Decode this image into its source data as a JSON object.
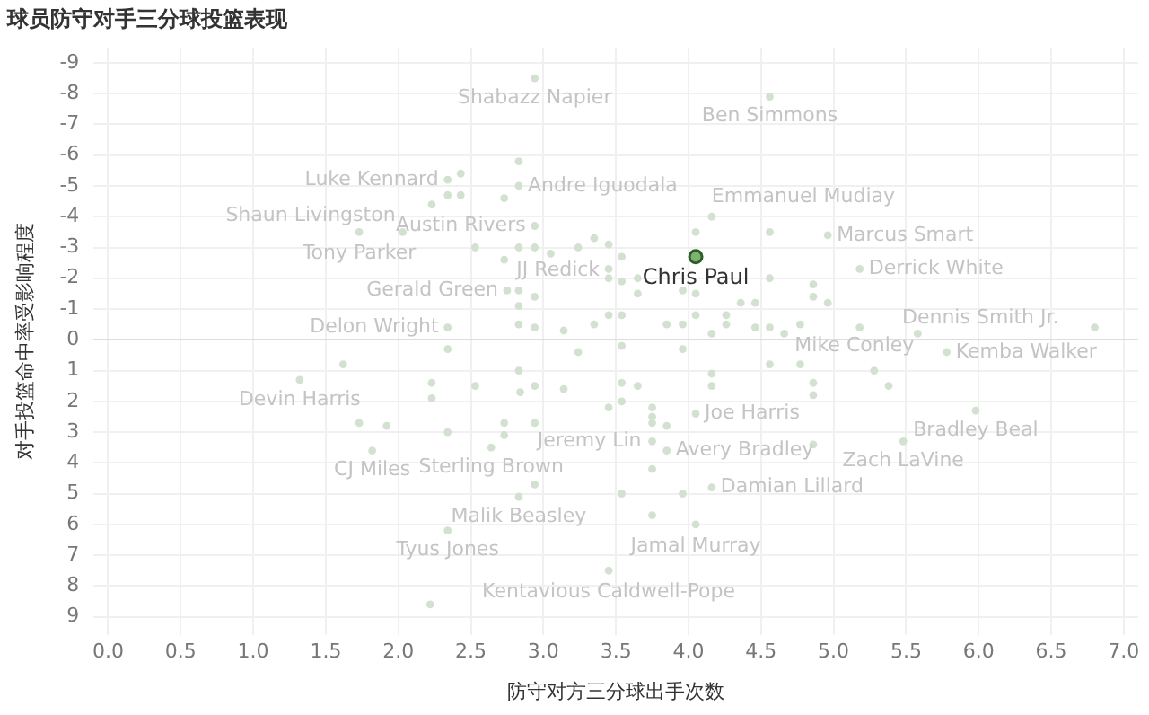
{
  "chart_data": {
    "type": "scatter",
    "title": "球员防守对手三分球投篮表现",
    "xlabel": "防守对方三分球出手次数",
    "ylabel": "对手投篮命中率受影响程度",
    "xlim": [
      -0.1,
      7.1
    ],
    "xticks": [
      {
        "value": 0,
        "label": "0.0"
      },
      {
        "value": 0.5,
        "label": "0.5"
      },
      {
        "value": 1,
        "label": "1.0"
      },
      {
        "value": 1.5,
        "label": "1.5"
      },
      {
        "value": 2,
        "label": "2.0"
      },
      {
        "value": 2.5,
        "label": "2.5"
      },
      {
        "value": 3,
        "label": "3.0"
      },
      {
        "value": 3.5,
        "label": "3.5"
      },
      {
        "value": 4,
        "label": "4.0"
      },
      {
        "value": 4.5,
        "label": "4.5"
      },
      {
        "value": 5,
        "label": "5.0"
      },
      {
        "value": 5.5,
        "label": "5.5"
      },
      {
        "value": 6,
        "label": "6.0"
      },
      {
        "value": 6.5,
        "label": "6.5"
      },
      {
        "value": 7,
        "label": "7.0"
      }
    ],
    "ylim": [
      9.6,
      -9.5
    ],
    "yticks": [
      -9,
      -8,
      -7,
      -6,
      -5,
      -4,
      -3,
      -2,
      -1,
      0,
      1,
      2,
      3,
      4,
      5,
      6,
      7,
      8,
      9
    ],
    "grid": true,
    "marker": "circle",
    "series": [
      {
        "color": "#d3e2d0",
        "x": [
          2.94,
          4.56,
          2.34,
          2.83,
          2.03,
          2.94,
          1.73,
          2.75,
          3.45,
          2.34,
          4.16,
          4.96,
          5.18,
          6.8,
          5.58,
          5.78,
          1.32,
          4.05,
          3.75,
          3.85,
          5.98,
          5.48,
          1.82,
          2.64,
          4.16,
          2.83,
          4.05,
          2.34,
          3.45,
          2.43,
          2.34,
          2.43,
          2.23,
          2.83,
          2.73,
          2.53,
          2.83,
          2.94,
          3.05,
          3.24,
          2.73,
          2.83,
          2.83,
          2.94,
          2.83,
          2.94,
          3.14,
          2.34,
          4.05,
          4.56,
          3.35,
          3.45,
          3.54,
          3.45,
          3.54,
          3.65,
          3.65,
          3.96,
          4.05,
          4.56,
          4.86,
          4.86,
          4.96,
          4.36,
          4.46,
          3.45,
          3.54,
          3.35,
          3.85,
          3.96,
          4.05,
          4.26,
          4.16,
          4.26,
          4.46,
          4.56,
          4.66,
          4.77,
          5.18,
          3.24,
          3.54,
          3.96,
          4.56,
          4.77,
          5.28,
          5.38,
          4.86,
          4.86,
          4.16,
          4.16,
          3.54,
          3.65,
          3.14,
          3.45,
          3.54,
          3.75,
          3.75,
          3.75,
          3.85,
          4.86,
          3.75,
          3.54,
          3.96,
          3.75,
          2.83,
          2.94,
          2.84,
          2.53,
          2.23,
          2.23,
          1.62,
          1.73,
          1.92,
          2.34,
          2.73,
          2.73,
          2.94,
          2.94,
          2.22
        ],
        "values": [
          -8.5,
          -7.9,
          -5.2,
          -5.0,
          -3.5,
          -3.7,
          -3.5,
          -1.6,
          -2.3,
          -0.4,
          -4.0,
          -3.4,
          -2.3,
          -0.4,
          -0.2,
          0.4,
          1.3,
          2.4,
          3.3,
          3.6,
          2.3,
          3.3,
          3.6,
          3.5,
          4.8,
          5.1,
          6.0,
          6.2,
          7.5,
          -5.4,
          -4.7,
          -4.7,
          -4.4,
          -5.8,
          -4.6,
          -3.0,
          -3.0,
          -3.0,
          -2.8,
          -3.0,
          -2.6,
          -1.6,
          -1.1,
          -1.4,
          -0.5,
          -0.4,
          -0.3,
          0.3,
          -3.5,
          -3.5,
          -3.3,
          -3.1,
          -2.7,
          -2.0,
          -1.9,
          -2.0,
          -1.5,
          -1.6,
          -1.5,
          -2.0,
          -1.8,
          -1.4,
          -1.2,
          -1.2,
          -1.2,
          -0.8,
          -0.8,
          -0.5,
          -0.5,
          -0.5,
          -0.8,
          -0.8,
          -0.2,
          -0.5,
          -0.4,
          -0.4,
          -0.2,
          -0.5,
          -0.4,
          0.4,
          0.2,
          0.3,
          0.8,
          0.8,
          1.0,
          1.5,
          1.4,
          1.8,
          1.1,
          1.5,
          1.4,
          1.5,
          1.6,
          2.2,
          2.0,
          2.2,
          2.5,
          2.7,
          2.8,
          3.4,
          4.2,
          5.0,
          5.0,
          5.7,
          1.0,
          1.5,
          1.7,
          1.5,
          1.4,
          1.9,
          0.8,
          2.7,
          2.8,
          3.0,
          2.7,
          3.1,
          2.7,
          4.7,
          8.6
        ]
      },
      {
        "color": "#7fb272",
        "x": [
          4.05
        ],
        "values": [
          -2.7
        ]
      }
    ],
    "annotations": [
      {
        "text": "Shabazz Napier",
        "x": 2.94,
        "y": -8.5
      },
      {
        "text": "Ben Simmons",
        "x": 4.56,
        "y": -7.9
      },
      {
        "text": "Luke Kennard",
        "x": 2.34,
        "y": -5.2
      },
      {
        "text": "Andre Iguodala",
        "x": 2.83,
        "y": -5.0
      },
      {
        "text": "Shaun Livingston",
        "x": 2.03,
        "y": -3.5
      },
      {
        "text": "Austin Rivers",
        "x": 2.94,
        "y": -3.7
      },
      {
        "text": "Tony Parker",
        "x": 1.73,
        "y": -3.5
      },
      {
        "text": "Gerald Green",
        "x": 2.75,
        "y": -1.6
      },
      {
        "text": "JJ Redick",
        "x": 3.45,
        "y": -2.3
      },
      {
        "text": "Delon Wright",
        "x": 2.34,
        "y": -0.4
      },
      {
        "text": "Emmanuel Mudiay",
        "x": 4.16,
        "y": -4.0
      },
      {
        "text": "Marcus Smart",
        "x": 4.96,
        "y": -3.4
      },
      {
        "text": "Derrick White",
        "x": 5.18,
        "y": -2.3
      },
      {
        "text": "Chris Paul",
        "x": 4.05,
        "y": -2.7
      },
      {
        "text": "Dennis Smith Jr.",
        "x": 6.8,
        "y": -0.4
      },
      {
        "text": "Mike Conley",
        "x": 5.58,
        "y": -0.2
      },
      {
        "text": "Kemba Walker",
        "x": 5.78,
        "y": 0.4
      },
      {
        "text": "Devin Harris",
        "x": 1.32,
        "y": 1.3
      },
      {
        "text": "Joe Harris",
        "x": 4.05,
        "y": 2.4
      },
      {
        "text": "Jeremy Lin",
        "x": 3.75,
        "y": 3.3
      },
      {
        "text": "Avery Bradley",
        "x": 3.85,
        "y": 3.6
      },
      {
        "text": "Bradley Beal",
        "x": 5.98,
        "y": 2.3
      },
      {
        "text": "Zach LaVine",
        "x": 5.48,
        "y": 3.3
      },
      {
        "text": "CJ Miles",
        "x": 1.82,
        "y": 3.6
      },
      {
        "text": "Sterling Brown",
        "x": 2.64,
        "y": 3.5
      },
      {
        "text": "Damian Lillard",
        "x": 4.16,
        "y": 4.8
      },
      {
        "text": "Malik Beasley",
        "x": 2.83,
        "y": 5.1
      },
      {
        "text": "Jamal Murray",
        "x": 4.05,
        "y": 6.0
      },
      {
        "text": "Tyus Jones",
        "x": 2.34,
        "y": 6.2
      },
      {
        "text": "Kentavious Caldwell-Pope",
        "x": 3.45,
        "y": 7.5
      }
    ]
  }
}
